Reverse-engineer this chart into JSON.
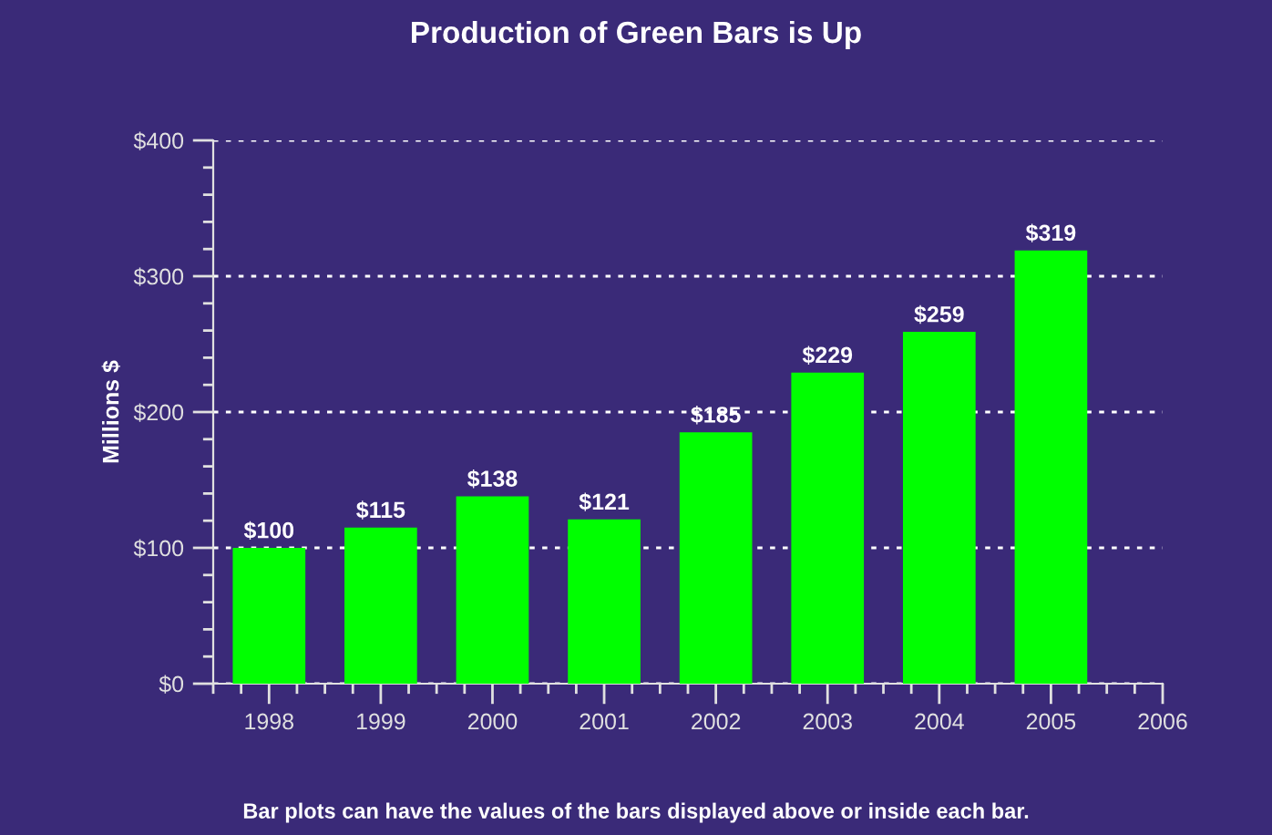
{
  "chart_data": {
    "type": "bar",
    "title": "Production of Green Bars is Up",
    "ylabel": "Millions $",
    "x": [
      1998,
      1999,
      2000,
      2001,
      2002,
      2003,
      2004,
      2005
    ],
    "values": [
      100,
      115,
      138,
      121,
      185,
      229,
      259,
      319
    ],
    "value_labels": [
      "$100",
      "$115",
      "$138",
      "$121",
      "$185",
      "$229",
      "$259",
      "$319"
    ],
    "color": "#00ff00",
    "xlim": [
      1997.5,
      2006
    ],
    "xticks": [
      1998,
      1999,
      2000,
      2001,
      2002,
      2003,
      2004,
      2005,
      2006
    ],
    "ylim": [
      0,
      400
    ],
    "yticks": [
      {
        "value": 0,
        "label": "$0"
      },
      {
        "value": 100,
        "label": "$100"
      },
      {
        "value": 200,
        "label": "$200"
      },
      {
        "value": 300,
        "label": "$300"
      },
      {
        "value": 400,
        "label": "$400"
      }
    ],
    "grid": "y",
    "legend": false,
    "annotations": [
      "Bar plots can have the values of the bars displayed above or inside each bar."
    ]
  }
}
